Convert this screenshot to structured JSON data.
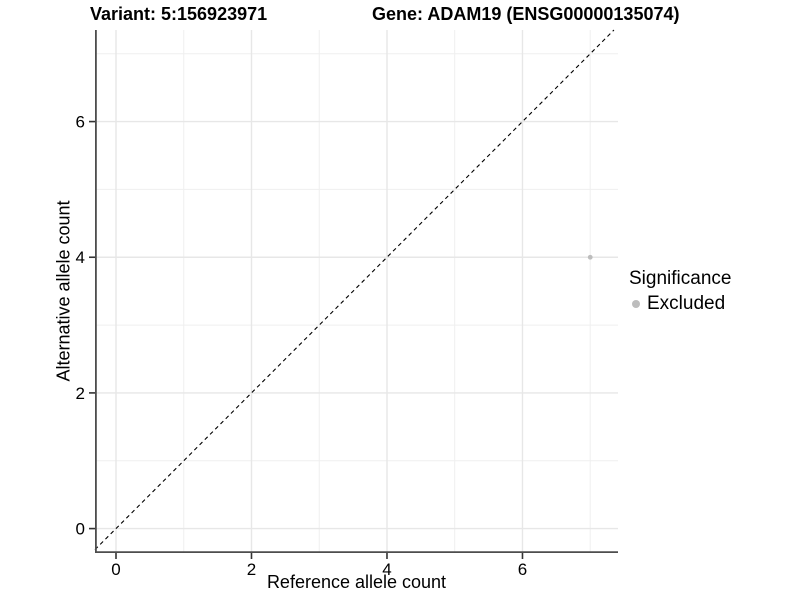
{
  "header": {
    "variant_title": "Variant: 5:156923971",
    "gene_title": "Gene: ADAM19 (ENSG00000135074)"
  },
  "legend": {
    "title": "Significance",
    "items": [
      {
        "label": "Excluded",
        "color": "#bdbdbd"
      }
    ]
  },
  "chart_data": {
    "type": "scatter",
    "title": "Variant: 5:156923971 — Gene: ADAM19 (ENSG00000135074)",
    "xlabel": "Reference allele count",
    "ylabel": "Alternative allele count",
    "xlim": [
      -0.31,
      7.41
    ],
    "ylim": [
      -0.36,
      7.35
    ],
    "x_major_ticks": [
      0,
      2,
      4,
      6
    ],
    "x_minor_ticks": [
      1,
      3,
      5,
      7
    ],
    "y_major_ticks": [
      0,
      2,
      4,
      6
    ],
    "y_minor_ticks": [
      1,
      3,
      5,
      7
    ],
    "grid": "major+minor",
    "legend_position": "right",
    "series": [
      {
        "name": "Excluded",
        "color": "#bdbdbd",
        "point_radius": 2.4,
        "points": [
          {
            "x": 7,
            "y": 4
          }
        ]
      }
    ],
    "identity_line": {
      "type": "y=x",
      "style": "dashed",
      "color": "#000000"
    },
    "colors": {
      "grid_major": "#e7e7e7",
      "grid_minor": "#efefef",
      "axis": "#4d4d4d",
      "tick": "#333333",
      "text": "#000000",
      "background": "#ffffff"
    }
  }
}
